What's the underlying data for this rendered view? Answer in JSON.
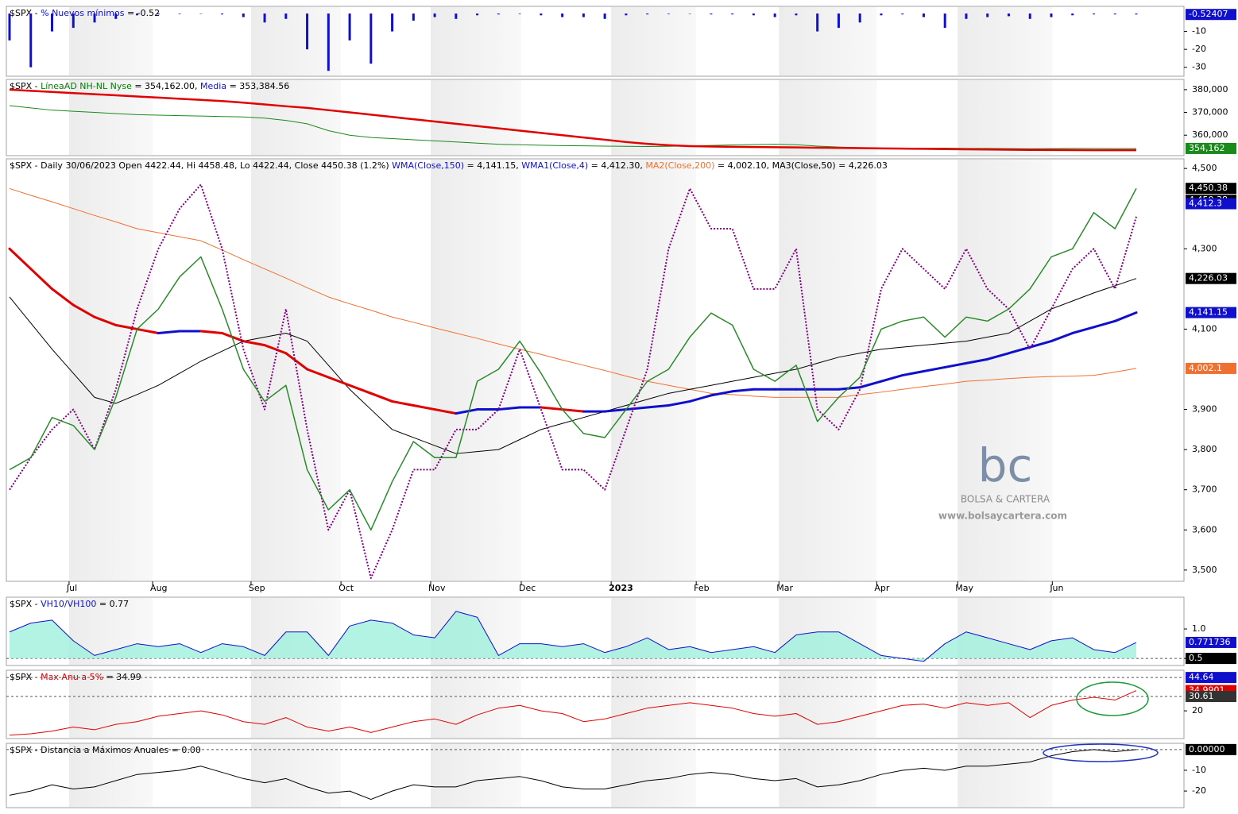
{
  "chart_data": [
    {
      "type": "bar",
      "header": [
        {
          "text": "$SPX - ",
          "color": "#000000"
        },
        {
          "text": "% Nuevos mínimos",
          "color": "#1010cc"
        },
        {
          "text": " = -0.52",
          "color": "#000000"
        }
      ],
      "color": "#1010cc",
      "values": [
        -15,
        -30,
        -10,
        -8,
        -5,
        -3,
        -1,
        -0.5,
        -0.3,
        -0.2,
        -0.5,
        -2,
        -5,
        -3,
        -20,
        -32,
        -15,
        -28,
        -10,
        -4,
        -2,
        -3,
        -1,
        -0.5,
        -0.3,
        -1,
        -2,
        -2,
        -3,
        -1,
        -0.5,
        -0.3,
        -0.2,
        -0.5,
        -0.5,
        -1,
        -2,
        -1,
        -10,
        -8,
        -5,
        -1,
        -0.5,
        -2,
        -8,
        -3,
        -2,
        -1.5,
        -3,
        -2,
        -1,
        -0.5,
        -0.5,
        -0.52
      ],
      "ylim": [
        -35,
        4
      ],
      "yticks": [
        -30,
        -20,
        -10
      ],
      "markers": [
        {
          "value": -0.52407,
          "color": "#1010cc"
        }
      ]
    },
    {
      "type": "line",
      "header": [
        {
          "text": "$SPX - ",
          "color": "#000000"
        },
        {
          "text": "LíneaAD NH-NL Nyse",
          "color": "#008000"
        },
        {
          "text": " = 354,162.00, ",
          "color": "#000000"
        },
        {
          "text": "Media",
          "color": "#1010cc"
        },
        {
          "text": " = 353,384.56",
          "color": "#000000"
        }
      ],
      "series": [
        {
          "color": "#1a8a1a",
          "width": 1,
          "values": [
            373000,
            372000,
            371000,
            370500,
            370000,
            369500,
            369000,
            368800,
            368600,
            368400,
            368200,
            368000,
            367500,
            366500,
            365000,
            362000,
            360000,
            359000,
            358500,
            358000,
            357500,
            357000,
            356500,
            356000,
            355800,
            355600,
            355400,
            355300,
            355200,
            355100,
            355000,
            355100,
            355300,
            355500,
            355700,
            355900,
            356000,
            355800,
            355200,
            354800,
            354500,
            354300,
            354200,
            354200,
            354300,
            354200,
            354200,
            354100,
            354000,
            354100,
            354200,
            354200,
            354100,
            354162
          ]
        },
        {
          "color": "#e00000",
          "width": 2.5,
          "values": [
            380000,
            379500,
            379000,
            378500,
            378000,
            377500,
            377000,
            376500,
            376000,
            375500,
            375000,
            374300,
            373500,
            372700,
            372000,
            371000,
            370000,
            369000,
            368000,
            367000,
            366000,
            365000,
            364000,
            363000,
            362000,
            361000,
            360000,
            359000,
            358000,
            357000,
            356200,
            355600,
            355200,
            355000,
            354900,
            354800,
            354700,
            354600,
            354500,
            354400,
            354300,
            354200,
            354100,
            354000,
            353900,
            353800,
            353700,
            353600,
            353550,
            353500,
            353450,
            353420,
            353400,
            353384.56
          ]
        }
      ],
      "ylim": [
        351000,
        384500
      ],
      "yticks": [
        {
          "value": 360000,
          "label": "360,000"
        },
        {
          "value": 370000,
          "label": "370,000"
        },
        {
          "value": 380000,
          "label": "380,000"
        }
      ],
      "markers": [
        {
          "value": 354162,
          "label": "354,162",
          "color": "#1a8a1a"
        }
      ]
    },
    {
      "type": "line",
      "header": [
        {
          "text": "$SPX - Daily 30/06/2023 Open 4422.44, Hi 4458.48, Lo 4422.44, Close 4450.38 (1.2%) ",
          "color": "#000000"
        },
        {
          "text": "WMA(Close,150)",
          "color": "#1010cc"
        },
        {
          "text": " = 4,141.15, ",
          "color": "#000000"
        },
        {
          "text": "WMA1(Close,4)",
          "color": "#1010cc"
        },
        {
          "text": " = 4,412.30, ",
          "color": "#000000"
        },
        {
          "text": "MA2(Close,200)",
          "color": "#f07030"
        },
        {
          "text": " = 4,002.10, ",
          "color": "#000000"
        },
        {
          "text": "MA3(Close,50)",
          "color": "#000000"
        },
        {
          "text": " = 4,226.03",
          "color": "#000000"
        }
      ],
      "xlim": [
        0,
        53
      ],
      "xticks": [
        {
          "value": 2.8,
          "label": "Jul"
        },
        {
          "value": 6.73,
          "label": "Aug"
        },
        {
          "value": 11.36,
          "label": "Sep"
        },
        {
          "value": 15.59,
          "label": "Oct"
        },
        {
          "value": 19.81,
          "label": "Nov"
        },
        {
          "value": 24.07,
          "label": "Dec"
        },
        {
          "value": 28.3,
          "label": "2023"
        },
        {
          "value": 32.3,
          "label": "Feb"
        },
        {
          "value": 36.19,
          "label": "Mar"
        },
        {
          "value": 40.79,
          "label": "Apr"
        },
        {
          "value": 44.6,
          "label": "May"
        },
        {
          "value": 49.05,
          "label": "Jun"
        }
      ],
      "series": [
        {
          "color": "#f07030",
          "width": 1,
          "values": [
            4450,
            4433,
            4417,
            4400,
            4383,
            4367,
            4350,
            4340,
            4330,
            4320,
            4297,
            4273,
            4250,
            4227,
            4203,
            4180,
            4163,
            4147,
            4130,
            4117,
            4103,
            4090,
            4077,
            4063,
            4050,
            4037,
            4023,
            4010,
            3997,
            3983,
            3970,
            3960,
            3950,
            3940,
            3937,
            3933,
            3930,
            3930,
            3930,
            3930,
            3937,
            3943,
            3950,
            3957,
            3963,
            3970,
            3973,
            3977,
            3980,
            3982,
            3983,
            3985,
            3993,
            4002.1
          ]
        },
        {
          "color": "#000000",
          "width": 1,
          "values": [
            4180,
            4115,
            4050,
            3990,
            3930,
            3915,
            3937,
            3960,
            3990,
            4020,
            4045,
            4070,
            4080,
            4090,
            4070,
            4010,
            3950,
            3900,
            3850,
            3830,
            3810,
            3790,
            3795,
            3800,
            3825,
            3850,
            3865,
            3880,
            3895,
            3910,
            3925,
            3940,
            3950,
            3960,
            3970,
            3980,
            3990,
            4000,
            4015,
            4030,
            4040,
            4050,
            4055,
            4060,
            4065,
            4070,
            4080,
            4090,
            4120,
            4150,
            4170,
            4190,
            4208,
            4226.03
          ]
        },
        {
          "color": "#1010cc",
          "color_falling": "#e00000",
          "width": 3,
          "values": [
            4300,
            4250,
            4200,
            4160,
            4130,
            4110,
            4100,
            4090,
            4095,
            4095,
            4090,
            4070,
            4060,
            4040,
            4000,
            3980,
            3960,
            3940,
            3920,
            3910,
            3900,
            3890,
            3900,
            3900,
            3905,
            3905,
            3900,
            3895,
            3895,
            3900,
            3905,
            3910,
            3920,
            3935,
            3945,
            3950,
            3950,
            3950,
            3950,
            3950,
            3955,
            3970,
            3985,
            3995,
            4005,
            4015,
            4025,
            4040,
            4055,
            4070,
            4090,
            4105,
            4120,
            4141.15
          ]
        },
        {
          "color": "#800080",
          "width": 2,
          "dash": true,
          "values": [
            3700,
            3780,
            3850,
            3900,
            3800,
            3950,
            4150,
            4300,
            4400,
            4460,
            4300,
            4050,
            3900,
            4150,
            3850,
            3600,
            3700,
            3480,
            3600,
            3750,
            3750,
            3850,
            3850,
            3900,
            4050,
            3900,
            3750,
            3750,
            3700,
            3850,
            4000,
            4300,
            4450,
            4350,
            4350,
            4200,
            4200,
            4300,
            3900,
            3850,
            3950,
            4200,
            4300,
            4250,
            4200,
            4300,
            4200,
            4150,
            4050,
            4150,
            4250,
            4300,
            4200,
            4380
          ]
        },
        {
          "color": "#2a8a2a",
          "width": 1.5,
          "values": [
            3750,
            3780,
            3880,
            3860,
            3800,
            3930,
            4100,
            4150,
            4230,
            4280,
            4150,
            4000,
            3920,
            3960,
            3750,
            3650,
            3700,
            3600,
            3720,
            3820,
            3780,
            3780,
            3970,
            4000,
            4070,
            3990,
            3900,
            3840,
            3830,
            3900,
            3970,
            4000,
            4080,
            4140,
            4110,
            4000,
            3970,
            4010,
            3870,
            3930,
            3980,
            4100,
            4120,
            4130,
            4080,
            4130,
            4120,
            4150,
            4200,
            4280,
            4300,
            4390,
            4350,
            4450.38
          ]
        }
      ],
      "ylim": [
        3472,
        4524
      ],
      "yticks": [
        {
          "value": 3500,
          "label": "3,500"
        },
        {
          "value": 3600,
          "label": "3,600"
        },
        {
          "value": 3700,
          "label": "3,700"
        },
        {
          "value": 3800,
          "label": "3,800"
        },
        {
          "value": 3900,
          "label": "3,900"
        },
        {
          "value": 4100,
          "label": "4,100"
        },
        {
          "value": 4300,
          "label": "4,300"
        },
        {
          "value": 4500,
          "label": "4,500"
        }
      ],
      "markers": [
        {
          "value": 4450.38,
          "label": "4,450.38",
          "color": "#000000"
        },
        {
          "value": 4450.38,
          "label": "4,450.38",
          "color": "#000000",
          "offset": 1
        },
        {
          "value": 4412.3,
          "label": "4,412.3",
          "color": "#1010cc"
        },
        {
          "value": 4226.03,
          "label": "4,226.03",
          "color": "#000000"
        },
        {
          "value": 4141.15,
          "label": "4,141.15",
          "color": "#1010cc"
        },
        {
          "value": 4002.1,
          "label": "4,002.1",
          "color": "#f07030"
        }
      ],
      "watermark": {
        "logo": "bc",
        "name": "BOLSA & CARTERA",
        "url": "www.bolsaycartera.com"
      }
    },
    {
      "type": "line",
      "header": [
        {
          "text": "$SPX - ",
          "color": "#000000"
        },
        {
          "text": "VH10/VH100",
          "color": "#1010cc"
        },
        {
          "text": " = 0.77",
          "color": "#000000"
        }
      ],
      "area_color": "#9ff0dc",
      "series": [
        {
          "color": "#1010cc",
          "width": 1,
          "values": [
            0.95,
            1.1,
            1.15,
            0.8,
            0.55,
            0.65,
            0.75,
            0.7,
            0.75,
            0.6,
            0.75,
            0.7,
            0.55,
            0.95,
            0.95,
            0.55,
            1.05,
            1.15,
            1.1,
            0.9,
            0.85,
            1.3,
            1.2,
            0.55,
            0.75,
            0.75,
            0.7,
            0.75,
            0.6,
            0.7,
            0.85,
            0.65,
            0.7,
            0.6,
            0.65,
            0.7,
            0.6,
            0.9,
            0.95,
            0.95,
            0.75,
            0.55,
            0.5,
            0.45,
            0.75,
            0.95,
            0.85,
            0.75,
            0.65,
            0.8,
            0.85,
            0.65,
            0.6,
            0.77
          ]
        }
      ],
      "ylim": [
        0.38,
        1.54
      ],
      "yticks": [
        0.5,
        {
          "value": 1,
          "label": "1.0"
        }
      ],
      "markers": [
        {
          "value": 0.771736,
          "color": "#1010cc"
        },
        {
          "value": 0.5,
          "color": "#000000",
          "dashed": true
        }
      ]
    },
    {
      "type": "line",
      "header": [
        {
          "text": "$SPX - ",
          "color": "#000000"
        },
        {
          "text": "Max Anu a 5%",
          "color": "#e00000"
        },
        {
          "text": " = 34.99",
          "color": "#000000"
        }
      ],
      "series": [
        {
          "color": "#e00000",
          "width": 1,
          "values": [
            2,
            3,
            5,
            8,
            6,
            10,
            12,
            16,
            18,
            20,
            17,
            12,
            10,
            15,
            8,
            5,
            8,
            4,
            8,
            12,
            14,
            10,
            17,
            22,
            24,
            20,
            18,
            12,
            14,
            18,
            22,
            24,
            26,
            24,
            22,
            18,
            16,
            18,
            10,
            12,
            16,
            20,
            24,
            25,
            22,
            26,
            24,
            26,
            15,
            24,
            28,
            30,
            28,
            34.99
          ]
        }
      ],
      "ylim": [
        -0.5,
        50
      ],
      "yticks": [
        20
      ],
      "markers": [
        {
          "value": 44.64,
          "color": "#1010cc",
          "dashed": true
        },
        {
          "value": 34.9901,
          "color": "#e00000"
        },
        {
          "value": 30.61,
          "color": "#333333",
          "dashed": true
        }
      ],
      "ellipse_color": "#1a9a3a"
    },
    {
      "type": "line",
      "header": [
        {
          "text": "$SPX - Distancia a Máximos Anuales = 0.00",
          "color": "#000000"
        }
      ],
      "series": [
        {
          "color": "#000000",
          "width": 1,
          "values": [
            -22,
            -20,
            -17,
            -19,
            -18,
            -15,
            -12,
            -11,
            -10,
            -8,
            -11,
            -14,
            -16,
            -14,
            -18,
            -21,
            -20,
            -24,
            -20,
            -17,
            -18,
            -18,
            -15,
            -14,
            -13,
            -15,
            -18,
            -19,
            -19,
            -17,
            -15,
            -14,
            -12,
            -11,
            -12,
            -14,
            -15,
            -14,
            -18,
            -17,
            -15,
            -12,
            -10,
            -9,
            -10,
            -8,
            -8,
            -7,
            -6,
            -3,
            -1,
            0,
            -1,
            0
          ]
        }
      ],
      "ylim": [
        -28,
        3
      ],
      "yticks": [
        -20,
        -10
      ],
      "markers": [
        {
          "value": 0,
          "label": "0.00000",
          "color": "#000000",
          "dashed": true
        }
      ],
      "ellipse_color": "#2233bb"
    }
  ]
}
